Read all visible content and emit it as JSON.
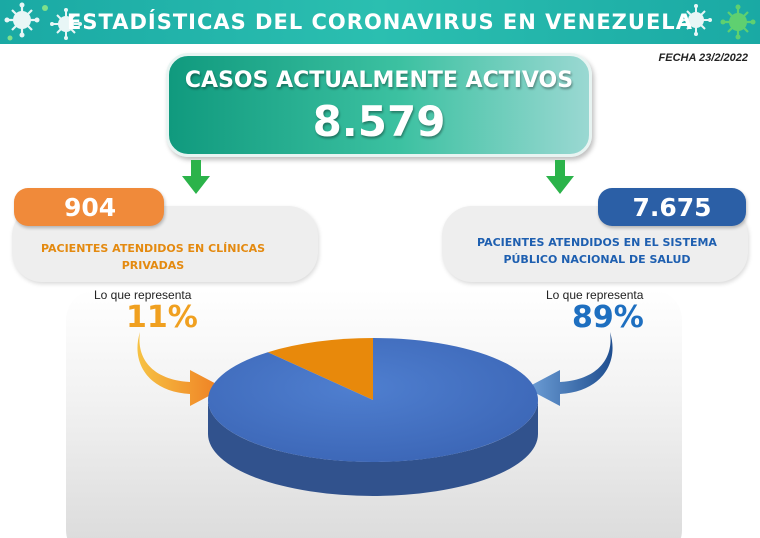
{
  "header": {
    "title": "ESTADÍSTICAS DEL CORONAVIRUS EN VENEZUELA"
  },
  "date": "FECHA 23/2/2022",
  "active": {
    "label": "CASOS ACTUALMENTE ACTIVOS",
    "value": "8.579"
  },
  "left": {
    "count": "904",
    "label": "PACIENTES ATENDIDOS EN CLÍNICAS PRIVADAS",
    "represents_label": "Lo que representa",
    "percent": "11%"
  },
  "right": {
    "count": "7.675",
    "label": "PACIENTES ATENDIDOS EN EL SISTEMA PÚBLICO NACIONAL DE SALUD",
    "represents_label": "Lo que representa",
    "percent": "89%"
  },
  "colors": {
    "header": "#1aa9a4",
    "active_box": "#3cc1a1",
    "arrow": "#2bb34a",
    "private": "#e8890b",
    "public": "#4472c4"
  },
  "chart_data": {
    "type": "pie",
    "title": "",
    "slices": [
      {
        "label": "PACIENTES ATENDIDOS EN CLÍNICAS PRIVADAS",
        "value": 11,
        "count": 904,
        "color": "#e8890b"
      },
      {
        "label": "PACIENTES ATENDIDOS EN EL SISTEMA PÚBLICO NACIONAL DE SALUD",
        "value": 89,
        "count": 7675,
        "color": "#4472c4"
      }
    ],
    "style": "3d",
    "legend": "none"
  }
}
